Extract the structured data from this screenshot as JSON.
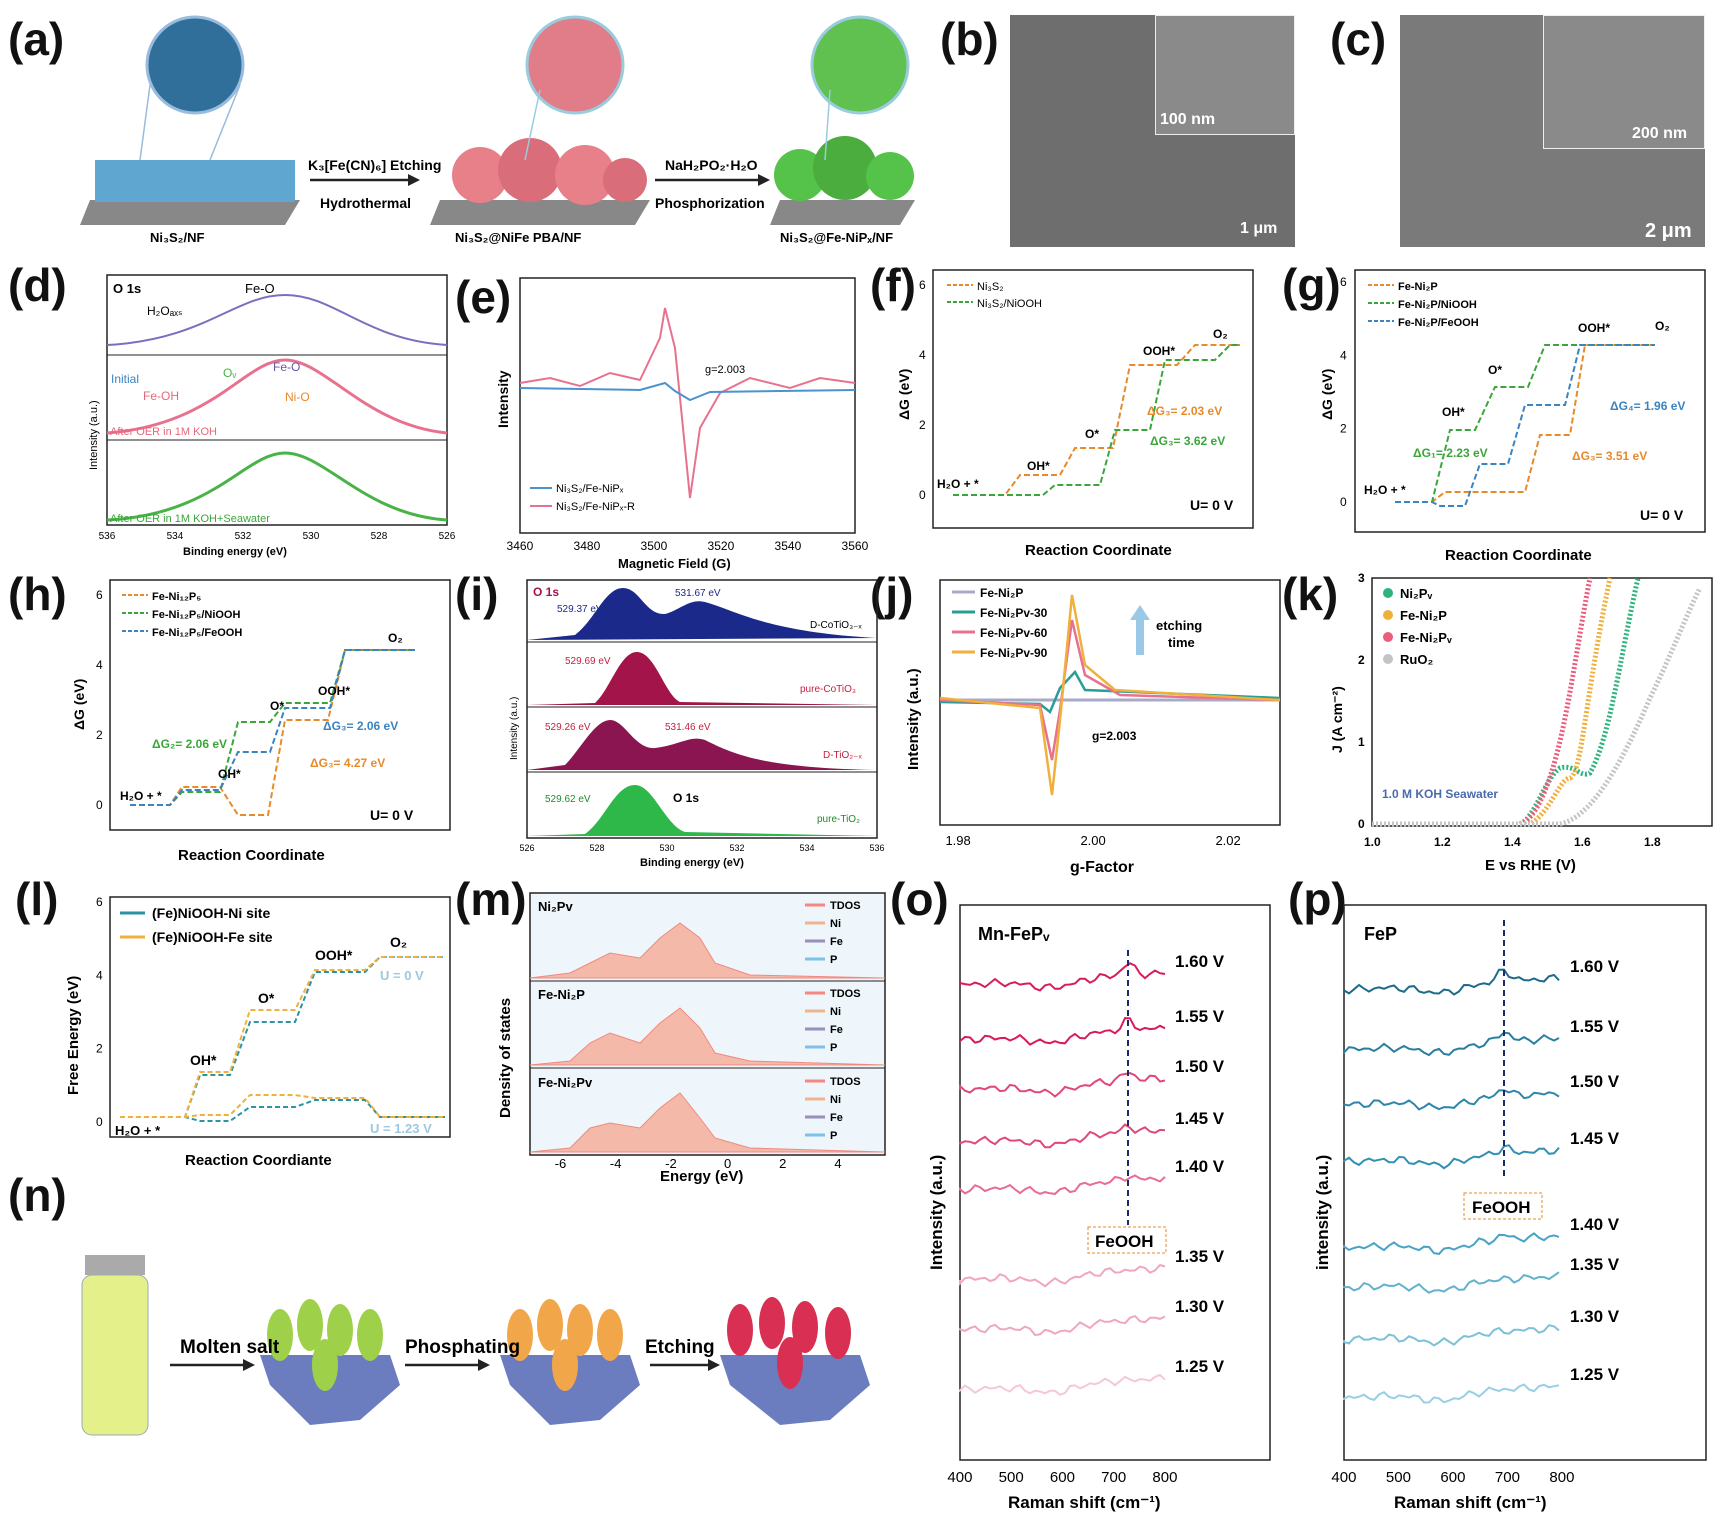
{
  "panels": {
    "a": {
      "label": "(a)",
      "step1": "Ni₃S₂/NF",
      "step2": "Ni₃S₂@NiFe PBA/NF",
      "step3": "Ni₃S₂@Fe-NiPₓ/NF",
      "arrow1_top": "K₃[Fe(CN)₆] Etching",
      "arrow1_bottom": "Hydrothermal",
      "arrow2_top": "NaH₂PO₂·H₂O",
      "arrow2_bottom": "Phosphorization"
    },
    "b": {
      "label": "(b)",
      "inset_scale": "100 nm",
      "main_scale": "1 μm"
    },
    "c": {
      "label": "(c)",
      "inset_scale": "200 nm",
      "main_scale": "2 μm"
    },
    "d": {
      "label": "(d)",
      "title": "O 1s",
      "h2o": "H₂Oₐₓₛ",
      "feo_top": "Fe-O",
      "initial": "Initial",
      "ov": "Oᵥ",
      "feo_mid": "Fe-O",
      "feoh": "Fe-OH",
      "nio": "Ni-O",
      "after1": "After OER in 1M KOH",
      "after2": "After OER in 1M KOH+Seawater",
      "xlabel": "Binding energy (eV)",
      "ylabel": "Intensity (a.u.)",
      "xticks": [
        "536",
        "534",
        "532",
        "530",
        "528",
        "526"
      ]
    },
    "e": {
      "label": "(e)",
      "ylabel": "Intensity",
      "xlabel": "Magnetic Field (G)",
      "gval": "g=2.003",
      "leg1": "Ni₃S₂/Fe-NiPₓ",
      "leg2": "Ni₃S₂/Fe-NiPₓ-R",
      "xticks": [
        "3460",
        "3480",
        "3500",
        "3520",
        "3540",
        "3560"
      ]
    },
    "f": {
      "label": "(f)",
      "leg1": "Ni₃S₂",
      "leg2": "Ni₃S₂/NiOOH",
      "ylabel": "ΔG (eV)",
      "xlabel": "Reaction Coordinate",
      "u": "U= 0 V",
      "h2o": "H₂O + *",
      "oh": "OH*",
      "o": "O*",
      "ooh": "OOH*",
      "o2": "O₂",
      "dg1": "ΔG₃= 2.03 eV",
      "dg2": "ΔG₃= 3.62 eV",
      "yticks": [
        "0",
        "2",
        "4",
        "6"
      ]
    },
    "g": {
      "label": "(g)",
      "leg1": "Fe-Ni₂P",
      "leg2": "Fe-Ni₂P/NiOOH",
      "leg3": "Fe-Ni₂P/FeOOH",
      "ylabel": "ΔG (eV)",
      "xlabel": "Reaction Coordinate",
      "u": "U= 0 V",
      "h2o": "H₂O + *",
      "oh": "OH*",
      "o": "O*",
      "ooh": "OOH*",
      "o2": "O₂",
      "dg1": "ΔG₁= 2.23 eV",
      "dg3": "ΔG₃= 3.51 eV",
      "dg4": "ΔG₄= 1.96 eV",
      "yticks": [
        "0",
        "2",
        "4",
        "6"
      ]
    },
    "h": {
      "label": "(h)",
      "leg1": "Fe-Ni₁₂P₅",
      "leg2": "Fe-Ni₁₂P₅/NiOOH",
      "leg3": "Fe-Ni₁₂P₅/FeOOH",
      "ylabel": "ΔG (eV)",
      "xlabel": "Reaction Coordinate",
      "u": "U= 0 V",
      "h2o": "H₂O + *",
      "oh": "OH*",
      "o": "O*",
      "ooh": "OOH*",
      "o2": "O₂",
      "dg2": "ΔG₂= 2.06 eV",
      "dg3a": "ΔG₃= 2.06 eV",
      "dg3b": "ΔG₃= 4.27 eV",
      "yticks": [
        "0",
        "2",
        "4",
        "6"
      ]
    },
    "i": {
      "label": "(i)",
      "title": "O 1s",
      "s1a": "529.37 eV",
      "s1b": "531.67 eV",
      "s1n": "D-CoTiO₃₋ₓ",
      "s2a": "529.69 eV",
      "s2n": "pure-CoTiO₃",
      "s3a": "529.26 eV",
      "s3b": "531.46 eV",
      "s3n": "D-TiO₂₋ₓ",
      "s4a": "529.62 eV",
      "s4b": "O 1s",
      "s4n": "pure-TiO₂",
      "xlabel": "Binding energy (eV)",
      "ylabel": "Intensity (a.u.)",
      "xticks": [
        "526",
        "528",
        "530",
        "532",
        "534",
        "536"
      ]
    },
    "j": {
      "label": "(j)",
      "leg1": "Fe-Ni₂P",
      "leg2": "Fe-Ni₂Pv-30",
      "leg3": "Fe-Ni₂Pv-60",
      "leg4": "Fe-Ni₂Pv-90",
      "etch": "etching",
      "etch2": "time",
      "gval": "g=2.003",
      "ylabel": "Intensity (a.u.)",
      "xlabel": "g-Factor",
      "xticks": [
        "1.98",
        "2.00",
        "2.02"
      ]
    },
    "k": {
      "label": "(k)",
      "leg1": "Ni₂Pᵥ",
      "leg2": "Fe-Ni₂P",
      "leg3": "Fe-Ni₂Pᵥ",
      "leg4": "RuO₂",
      "note": "1.0 M KOH Seawater",
      "ylabel": "J (A cm⁻²)",
      "xlabel": "E vs RHE (V)",
      "xticks": [
        "1.0",
        "1.2",
        "1.4",
        "1.6",
        "1.8"
      ],
      "yticks": [
        "0",
        "1",
        "2",
        "3"
      ]
    },
    "l": {
      "label": "(l)",
      "leg1": "(Fe)NiOOH-Ni site",
      "leg2": "(Fe)NiOOH-Fe site",
      "ylabel": "Free Energy (eV)",
      "xlabel": "Reaction Coordiante",
      "h2o": "H₂O + *",
      "oh": "OH*",
      "o": "O*",
      "ooh": "OOH*",
      "o2": "O₂",
      "u0": "U = 0 V",
      "u123": "U = 1.23 V",
      "yticks": [
        "0",
        "2",
        "4",
        "6"
      ]
    },
    "m": {
      "label": "(m)",
      "t1": "Ni₂Pv",
      "t2": "Fe-Ni₂P",
      "t3": "Fe-Ni₂Pv",
      "legend": [
        "TDOS",
        "Ni",
        "Fe",
        "P"
      ],
      "ylabel": "Density of states",
      "xlabel": "Energy (eV)",
      "xticks": [
        "-6",
        "-4",
        "-2",
        "0",
        "2",
        "4"
      ]
    },
    "n": {
      "label": "(n)",
      "step1": "Molten salt",
      "step2": "Phosphating",
      "step3": "Etching"
    },
    "o": {
      "label": "(o)",
      "title": "Mn-FePᵥ",
      "volts": [
        "1.60 V",
        "1.55 V",
        "1.50 V",
        "1.45 V",
        "1.40 V",
        "1.35 V",
        "1.30 V",
        "1.25 V"
      ],
      "feooh": "FeOOH",
      "ylabel": "Intensity (a.u.)",
      "xlabel": "Raman shift (cm⁻¹)",
      "xticks": [
        "400",
        "500",
        "600",
        "700",
        "800"
      ]
    },
    "p": {
      "label": "(p)",
      "title": "FeP",
      "volts": [
        "1.60 V",
        "1.55 V",
        "1.50 V",
        "1.45 V",
        "1.40 V",
        "1.35 V",
        "1.30 V",
        "1.25 V"
      ],
      "feooh": "FeOOH",
      "ylabel": "intensity (a.u.)",
      "xlabel": "Raman shift (cm⁻¹)",
      "xticks": [
        "400",
        "500",
        "600",
        "700",
        "800"
      ]
    }
  }
}
